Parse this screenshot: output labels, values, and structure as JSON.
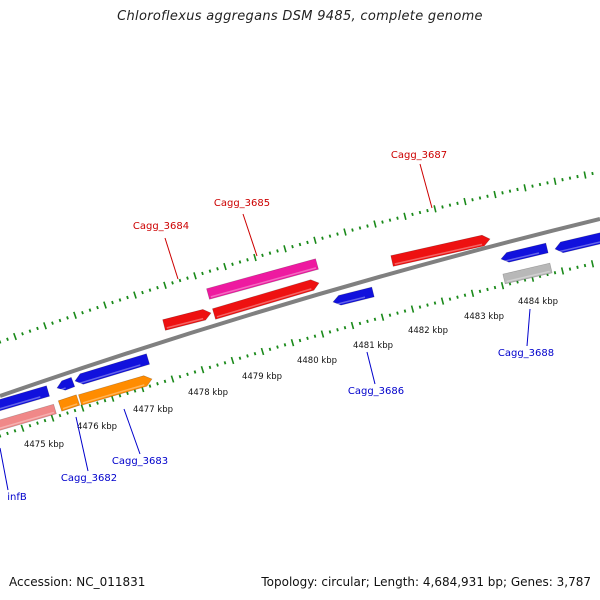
{
  "title": "Chloroflexus aggregans DSM 9485, complete genome",
  "footer": {
    "accession": "Accession: NC_011831",
    "summary": "Topology: circular; Length: 4,684,931 bp; Genes: 3,787"
  },
  "colors": {
    "forward": "#ee1111",
    "reverse": "#1111dd",
    "pink": "#ee1aa0",
    "orange": "#ff8c00",
    "salmon": "#f08888",
    "grey": "#b8b8b8",
    "ticks": "#1a8a1a",
    "backbone": "#808080",
    "label_forward": "#cc0000",
    "label_reverse": "#0000cc"
  },
  "ticks": [
    {
      "label": "4475 kbp"
    },
    {
      "label": "4476 kbp"
    },
    {
      "label": "4477 kbp"
    },
    {
      "label": "4478 kbp"
    },
    {
      "label": "4479 kbp"
    },
    {
      "label": "4480 kbp"
    },
    {
      "label": "4481 kbp"
    },
    {
      "label": "4482 kbp"
    },
    {
      "label": "4483 kbp"
    },
    {
      "label": "4484 kbp"
    }
  ],
  "genes": [
    {
      "name": "infB",
      "strand": "reverse"
    },
    {
      "name": "Cagg_3682",
      "strand": "reverse"
    },
    {
      "name": "Cagg_3683",
      "strand": "reverse"
    },
    {
      "name": "Cagg_3684",
      "strand": "forward"
    },
    {
      "name": "Cagg_3685",
      "strand": "forward"
    },
    {
      "name": "Cagg_3686",
      "strand": "reverse"
    },
    {
      "name": "Cagg_3687",
      "strand": "forward"
    },
    {
      "name": "Cagg_3688",
      "strand": "reverse"
    }
  ]
}
